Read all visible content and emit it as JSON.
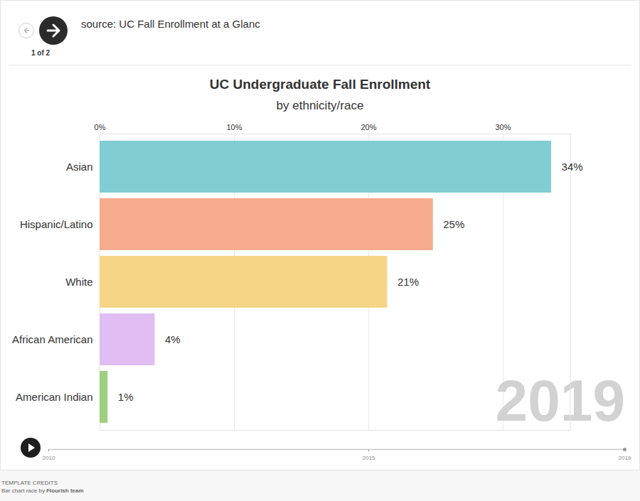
{
  "header": {
    "page": "1 of 2",
    "source": "source: UC Fall Enrollment at a Glanc"
  },
  "chart_data": {
    "type": "bar",
    "orientation": "horizontal",
    "title": "UC Undergraduate Fall Enrollment",
    "subtitle": "by ethnicity/race",
    "categories": [
      "Asian",
      "Hispanic/Latino",
      "White",
      "African American",
      "American Indian"
    ],
    "values": [
      33.6,
      24.8,
      21.4,
      4.1,
      0.6
    ],
    "value_labels": [
      "34%",
      "25%",
      "21%",
      "4%",
      "1%"
    ],
    "colors": [
      "#80cdd2",
      "#f7ab8d",
      "#f6d587",
      "#e0bdf2",
      "#9dcf7f"
    ],
    "xlim": [
      0,
      35
    ],
    "xticks": [
      {
        "value": 0,
        "label": "0%"
      },
      {
        "value": 10,
        "label": "10%"
      },
      {
        "value": 20,
        "label": "20%"
      },
      {
        "value": 30,
        "label": "30%"
      }
    ],
    "grid": true,
    "data_labels": true
  },
  "timeline": {
    "range": [
      2010,
      2019
    ],
    "ticks": [
      2010,
      2015,
      2019
    ],
    "current": 2019
  },
  "credits": {
    "heading": "TEMPLATE CREDITS",
    "text": "Bar chart race by",
    "author": "Flourish team"
  }
}
